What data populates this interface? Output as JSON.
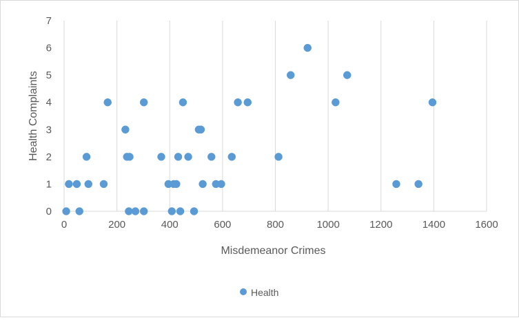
{
  "chart_data": {
    "type": "scatter",
    "title": "",
    "xlabel": "Misdemeanor Crimes",
    "ylabel": "Health Complaints",
    "xlim": [
      0,
      1600
    ],
    "ylim": [
      0,
      7
    ],
    "x_ticks": [
      "0",
      "200",
      "400",
      "600",
      "800",
      "1000",
      "1200",
      "1400",
      "1600"
    ],
    "y_ticks": [
      "0",
      "1",
      "2",
      "3",
      "4",
      "5",
      "6",
      "7"
    ],
    "grid": "vertical major gridlines",
    "legend_position": "bottom",
    "series": [
      {
        "name": "Health",
        "color": "#5b9bd5",
        "points": [
          [
            8,
            0
          ],
          [
            58,
            0
          ],
          [
            245,
            0
          ],
          [
            270,
            0
          ],
          [
            302,
            0
          ],
          [
            408,
            0
          ],
          [
            440,
            0
          ],
          [
            492,
            0
          ],
          [
            18,
            1
          ],
          [
            48,
            1
          ],
          [
            92,
            1
          ],
          [
            150,
            1
          ],
          [
            395,
            1
          ],
          [
            415,
            1
          ],
          [
            425,
            1
          ],
          [
            525,
            1
          ],
          [
            575,
            1
          ],
          [
            595,
            1
          ],
          [
            1258,
            1
          ],
          [
            1342,
            1
          ],
          [
            85,
            2
          ],
          [
            238,
            2
          ],
          [
            248,
            2
          ],
          [
            368,
            2
          ],
          [
            432,
            2
          ],
          [
            470,
            2
          ],
          [
            558,
            2
          ],
          [
            635,
            2
          ],
          [
            812,
            2
          ],
          [
            232,
            3
          ],
          [
            510,
            3
          ],
          [
            518,
            3
          ],
          [
            165,
            4
          ],
          [
            302,
            4
          ],
          [
            450,
            4
          ],
          [
            658,
            4
          ],
          [
            695,
            4
          ],
          [
            1028,
            4
          ],
          [
            1395,
            4
          ],
          [
            858,
            5
          ],
          [
            1072,
            5
          ],
          [
            922,
            6
          ]
        ]
      }
    ]
  }
}
